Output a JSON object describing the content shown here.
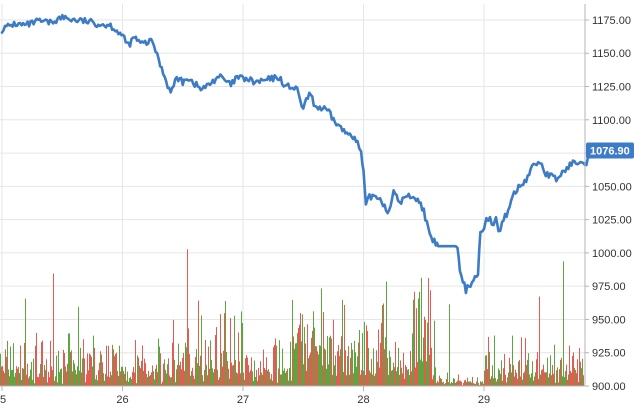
{
  "chart_data": {
    "type": "line",
    "title": "",
    "xlabel": "",
    "ylabel": "",
    "x_ticks": [
      {
        "label": "5",
        "day": 0
      },
      {
        "label": "26",
        "day": 1
      },
      {
        "label": "27",
        "day": 2
      },
      {
        "label": "28",
        "day": 3
      },
      {
        "label": "29",
        "day": 4
      }
    ],
    "xlim": [
      0,
      4.9
    ],
    "y_ticks": [
      "900.00",
      "925.00",
      "950.00",
      "975.00",
      "1000.00",
      "1025.00",
      "1050.00",
      "1075.00",
      "1100.00",
      "1125.00",
      "1150.00",
      "1175.00"
    ],
    "ylim": [
      900,
      1187
    ],
    "grid": true,
    "last_value": 1076.9,
    "last_value_label": "1076.90",
    "colors": {
      "price": "#3d7bc6",
      "volume_up": "#4c9a2a",
      "volume_down": "#e04a3f",
      "last_label_bg": "#3d7bc6"
    },
    "series": [
      {
        "kind": "price",
        "x": [
          0.0,
          0.1,
          0.2,
          0.3,
          0.4,
          0.5,
          0.55,
          0.6,
          0.7,
          0.8,
          0.9,
          0.98,
          1.05,
          1.1,
          1.12,
          1.15,
          1.2,
          1.25,
          1.3,
          1.4,
          1.45,
          1.5,
          1.52,
          1.55,
          1.6,
          1.65,
          1.7,
          1.8,
          1.9,
          1.95,
          2.0,
          2.05,
          2.1,
          2.2,
          2.3,
          2.35,
          2.4,
          2.45,
          2.5,
          2.55,
          2.6,
          2.7,
          2.75,
          2.8,
          2.85,
          2.9,
          2.95,
          2.98,
          3.0,
          3.02,
          3.05,
          3.1,
          3.15,
          3.2,
          3.25,
          3.3,
          3.35,
          3.4,
          3.45,
          3.5,
          3.55,
          3.6,
          3.62,
          3.65,
          3.7,
          3.75,
          3.78,
          3.8,
          3.85,
          3.95,
          3.97,
          4.0,
          4.02,
          4.05,
          4.08,
          4.1,
          4.12,
          4.15,
          4.2,
          4.25,
          4.3,
          4.35,
          4.4,
          4.45,
          4.48,
          4.5,
          4.55,
          4.6,
          4.65,
          4.7,
          4.75,
          4.8,
          4.85,
          4.9
        ],
        "values": [
          1168,
          1172,
          1171,
          1174,
          1173,
          1177,
          1176,
          1175,
          1174,
          1172,
          1171,
          1165,
          1156,
          1162,
          1160,
          1157,
          1158,
          1159,
          1145,
          1120,
          1132,
          1128,
          1132,
          1131,
          1127,
          1123,
          1125,
          1133,
          1126,
          1132,
          1131,
          1130,
          1128,
          1130,
          1132,
          1125,
          1125,
          1122,
          1108,
          1120,
          1110,
          1107,
          1100,
          1095,
          1090,
          1090,
          1082,
          1075,
          1060,
          1035,
          1042,
          1043,
          1040,
          1030,
          1045,
          1038,
          1042,
          1043,
          1040,
          1032,
          1012,
          1007,
          1005,
          1005,
          1005,
          1005,
          1005,
          985,
          972,
          985,
          1015,
          1020,
          1028,
          1025,
          1022,
          1025,
          1015,
          1022,
          1032,
          1045,
          1050,
          1055,
          1065,
          1068,
          1068,
          1060,
          1058,
          1055,
          1060,
          1065,
          1068,
          1070,
          1068,
          1077
        ]
      }
    ]
  }
}
